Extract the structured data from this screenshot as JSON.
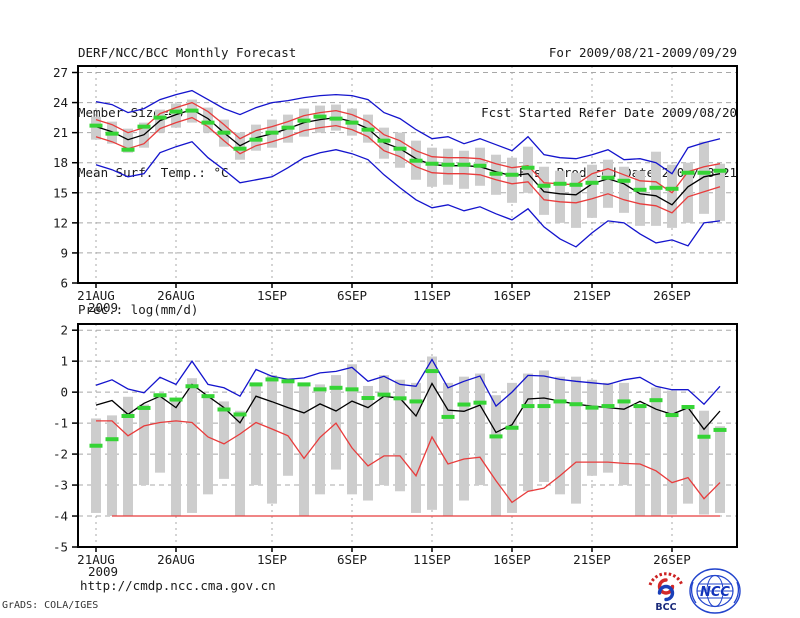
{
  "header": {
    "title": "DERF/NCC/BCC Monthly Forecast",
    "member_size": "Member Size=40",
    "for_range": "For 2009/08/21-2009/09/29",
    "refer_date": "Fcst Started Refer Date 2009/08/20",
    "produced_date": "Fcst Produced Date 2009/08/21"
  },
  "footer": {
    "url": "http://cmdp.ncc.cma.gov.cn",
    "grads_credit": "GrADS: COLA/IGES",
    "bcc_label": "BCC",
    "ncc_label": "NCC"
  },
  "colors": {
    "envelope_blue": "#1414cd",
    "spread_red": "#e83c3c",
    "mean_black": "#000000",
    "marker_green": "#35d435",
    "bar_gray": "#cdcdcd",
    "grid_gray": "#a8a8a8"
  },
  "chart_data": [
    {
      "type": "line",
      "name": "temperature-chart",
      "title": "Mean Surf. Temp.: °C",
      "ylabel": "",
      "ylim": [
        6,
        27
      ],
      "grid": true,
      "n_days": 40,
      "yticks": [
        27,
        24,
        21,
        18,
        15,
        12,
        9,
        6
      ],
      "xticks": [
        {
          "day": 1,
          "label": "21AUG",
          "sublabel": "2009"
        },
        {
          "day": 6,
          "label": "26AUG"
        },
        {
          "day": 12,
          "label": "1SEP"
        },
        {
          "day": 17,
          "label": "6SEP"
        },
        {
          "day": 22,
          "label": "11SEP"
        },
        {
          "day": 27,
          "label": "16SEP"
        },
        {
          "day": 32,
          "label": "21SEP"
        },
        {
          "day": 37,
          "label": "26SEP"
        }
      ],
      "series": [
        {
          "name": "ensemble-min-line",
          "color": "#1414cd",
          "values": [
            17.8,
            17.3,
            16.6,
            16.9,
            19.0,
            19.6,
            20.1,
            18.5,
            17.3,
            16.0,
            16.3,
            16.6,
            17.5,
            18.5,
            19.0,
            19.3,
            18.9,
            18.3,
            16.8,
            15.5,
            14.3,
            13.5,
            13.8,
            13.2,
            13.6,
            12.9,
            12.3,
            13.4,
            11.6,
            10.4,
            9.6,
            11.0,
            12.2,
            12.0,
            10.9,
            10.0,
            10.3,
            9.7,
            12.0,
            12.2
          ]
        },
        {
          "name": "ensemble-max-line",
          "color": "#1414cd",
          "values": [
            24.1,
            23.8,
            23.0,
            23.4,
            24.3,
            24.8,
            25.2,
            24.3,
            23.4,
            22.8,
            23.5,
            24.0,
            24.2,
            24.5,
            24.7,
            24.8,
            24.7,
            24.3,
            23.0,
            22.4,
            21.3,
            20.4,
            20.6,
            19.9,
            20.4,
            19.8,
            19.2,
            20.6,
            18.8,
            18.5,
            18.4,
            18.8,
            19.3,
            18.3,
            18.4,
            18.0,
            16.9,
            19.5,
            20.0,
            20.4
          ]
        },
        {
          "name": "lower-spread-line",
          "color": "#e83c3c",
          "values": [
            20.6,
            20.1,
            19.4,
            19.9,
            21.4,
            22.0,
            22.5,
            21.6,
            20.2,
            18.9,
            19.7,
            20.1,
            20.6,
            21.2,
            21.5,
            21.7,
            21.3,
            20.6,
            19.2,
            18.6,
            17.6,
            17.0,
            16.9,
            16.9,
            16.8,
            16.3,
            15.9,
            16.1,
            14.3,
            14.1,
            14.0,
            14.4,
            14.9,
            14.3,
            13.9,
            13.7,
            13.0,
            14.6,
            15.1,
            15.6
          ]
        },
        {
          "name": "upper-spread-line",
          "color": "#e83c3c",
          "values": [
            22.3,
            21.8,
            21.0,
            21.5,
            22.9,
            23.5,
            24.0,
            23.1,
            21.8,
            20.4,
            21.2,
            21.6,
            22.1,
            22.7,
            23.0,
            23.2,
            22.8,
            22.1,
            20.8,
            20.2,
            19.2,
            18.6,
            18.5,
            18.5,
            18.4,
            17.9,
            17.5,
            17.7,
            16.0,
            15.9,
            15.8,
            16.9,
            17.4,
            16.8,
            16.2,
            16.1,
            15.0,
            17.1,
            17.6,
            17.9
          ]
        },
        {
          "name": "ensemble-mean-line",
          "color": "#000000",
          "values": [
            21.6,
            21.1,
            20.3,
            20.8,
            22.2,
            22.8,
            23.3,
            22.4,
            21.0,
            19.7,
            20.5,
            20.9,
            21.4,
            22.0,
            22.3,
            22.5,
            22.1,
            21.4,
            20.0,
            19.4,
            18.4,
            17.8,
            17.7,
            17.7,
            17.6,
            17.1,
            16.7,
            16.9,
            15.1,
            14.9,
            14.8,
            15.9,
            16.4,
            15.9,
            14.9,
            14.7,
            13.8,
            15.6,
            16.6,
            16.9
          ]
        }
      ],
      "markers": {
        "name": "green-median-marks",
        "color": "#35d435",
        "values": [
          21.7,
          20.9,
          19.3,
          21.6,
          22.5,
          23.1,
          23.2,
          22.0,
          21.0,
          19.4,
          20.3,
          21.0,
          21.5,
          22.2,
          22.6,
          22.4,
          22.0,
          21.3,
          20.2,
          19.4,
          18.2,
          17.9,
          17.8,
          17.8,
          17.7,
          16.9,
          16.8,
          17.5,
          15.7,
          15.9,
          15.8,
          16.0,
          16.5,
          16.2,
          15.3,
          15.5,
          15.4,
          17.0,
          17.0,
          17.2
        ]
      },
      "bars": {
        "name": "ensemble-spread-bars",
        "color": "#cdcdcd",
        "ranges": [
          [
            20.3,
            22.6
          ],
          [
            19.9,
            22.1
          ],
          [
            19.0,
            21.4
          ],
          [
            19.5,
            22.0
          ],
          [
            21.0,
            23.3
          ],
          [
            21.5,
            23.9
          ],
          [
            22.0,
            24.3
          ],
          [
            21.0,
            23.5
          ],
          [
            19.6,
            22.3
          ],
          [
            18.3,
            21.0
          ],
          [
            19.2,
            21.8
          ],
          [
            19.5,
            22.3
          ],
          [
            20.0,
            22.8
          ],
          [
            20.6,
            23.4
          ],
          [
            21.0,
            23.7
          ],
          [
            21.2,
            23.8
          ],
          [
            20.7,
            23.4
          ],
          [
            20.0,
            22.8
          ],
          [
            18.4,
            21.5
          ],
          [
            17.5,
            21.0
          ],
          [
            16.3,
            20.2
          ],
          [
            15.6,
            19.5
          ],
          [
            15.8,
            19.4
          ],
          [
            15.4,
            19.2
          ],
          [
            15.7,
            19.5
          ],
          [
            14.8,
            18.8
          ],
          [
            14.0,
            18.5
          ],
          [
            15.0,
            19.6
          ],
          [
            12.8,
            17.6
          ],
          [
            12.0,
            17.2
          ],
          [
            11.5,
            17.0
          ],
          [
            12.5,
            17.8
          ],
          [
            13.5,
            18.3
          ],
          [
            13.0,
            17.6
          ],
          [
            11.7,
            17.2
          ],
          [
            11.7,
            19.1
          ],
          [
            11.5,
            17.8
          ],
          [
            12.0,
            18.0
          ],
          [
            12.9,
            20.1
          ],
          [
            12.2,
            17.9
          ]
        ]
      }
    },
    {
      "type": "line",
      "name": "precipitation-chart",
      "title": "Prec.: log(mm/d)",
      "ylabel": "",
      "ylim": [
        -5,
        2
      ],
      "grid": true,
      "n_days": 40,
      "yticks": [
        2,
        1,
        0,
        -1,
        -2,
        -3,
        -4,
        -5
      ],
      "xticks": [
        {
          "day": 1,
          "label": "21AUG",
          "sublabel": "2009"
        },
        {
          "day": 6,
          "label": "26AUG"
        },
        {
          "day": 12,
          "label": "1SEP"
        },
        {
          "day": 17,
          "label": "6SEP"
        },
        {
          "day": 22,
          "label": "11SEP"
        },
        {
          "day": 27,
          "label": "16SEP"
        },
        {
          "day": 32,
          "label": "21SEP"
        },
        {
          "day": 37,
          "label": "26SEP"
        }
      ],
      "floor_line": {
        "level": -4,
        "start_day": 2,
        "end_day": 40,
        "color": "#e83c3c"
      },
      "series": [
        {
          "name": "ensemble-max-line",
          "color": "#1414cd",
          "values": [
            0.22,
            0.4,
            0.1,
            -0.02,
            0.48,
            0.25,
            1.0,
            0.25,
            0.14,
            -0.13,
            0.73,
            0.51,
            0.41,
            0.46,
            0.62,
            0.67,
            0.8,
            0.35,
            0.51,
            0.25,
            0.19,
            1.05,
            0.14,
            0.35,
            0.52,
            -0.45,
            0.0,
            0.54,
            0.52,
            0.41,
            0.35,
            0.3,
            0.25,
            0.4,
            0.48,
            0.19,
            0.08,
            0.08,
            -0.39,
            0.19
          ]
        },
        {
          "name": "ensemble-min-line",
          "color": "#e83c3c",
          "values": [
            -0.93,
            -0.93,
            -1.41,
            -1.09,
            -0.98,
            -0.93,
            -0.98,
            -1.45,
            -1.67,
            -1.35,
            -0.98,
            -1.19,
            -1.41,
            -2.14,
            -1.46,
            -1.0,
            -1.8,
            -2.38,
            -2.06,
            -2.06,
            -2.7,
            -1.45,
            -2.32,
            -2.16,
            -2.1,
            -2.86,
            -3.56,
            -3.2,
            -3.1,
            -2.7,
            -2.26,
            -2.26,
            -2.26,
            -2.3,
            -2.32,
            -2.54,
            -2.92,
            -2.76,
            -3.44,
            -2.92
          ]
        },
        {
          "name": "ensemble-mean-line",
          "color": "#000000",
          "values": [
            -0.42,
            -0.27,
            -0.72,
            -0.36,
            -0.13,
            -0.5,
            0.25,
            -0.13,
            -0.5,
            -0.99,
            -0.13,
            -0.31,
            -0.5,
            -0.67,
            -0.38,
            -0.61,
            -0.29,
            -0.5,
            -0.13,
            -0.2,
            -0.77,
            0.28,
            -0.58,
            -0.62,
            -0.42,
            -1.3,
            -1.05,
            -0.22,
            -0.19,
            -0.29,
            -0.39,
            -0.45,
            -0.5,
            -0.55,
            -0.3,
            -0.55,
            -0.72,
            -0.5,
            -1.2,
            -0.61
          ]
        }
      ],
      "markers": {
        "name": "green-median-marks",
        "color": "#35d435",
        "values": [
          -1.73,
          -1.52,
          -0.77,
          -0.51,
          -0.1,
          -0.24,
          0.19,
          -0.13,
          -0.56,
          -0.72,
          0.25,
          0.41,
          0.35,
          0.25,
          0.09,
          0.14,
          0.09,
          -0.19,
          -0.08,
          -0.2,
          -0.3,
          0.68,
          -0.8,
          -0.4,
          -0.34,
          -1.43,
          -1.15,
          -0.45,
          -0.45,
          -0.3,
          -0.39,
          -0.5,
          -0.45,
          -0.3,
          -0.45,
          -0.26,
          -0.74,
          -0.48,
          -1.44,
          -1.22
        ]
      },
      "bars": {
        "name": "ensemble-spread-bars",
        "color": "#cdcdcd",
        "ranges": [
          [
            -3.9,
            -0.85
          ],
          [
            -4.0,
            -0.75
          ],
          [
            -4.0,
            -0.15
          ],
          [
            -3.0,
            -0.4
          ],
          [
            -2.6,
            -0.1
          ],
          [
            -4.0,
            -0.3
          ],
          [
            -3.9,
            0.45
          ],
          [
            -3.3,
            -0.1
          ],
          [
            -2.8,
            -0.3
          ],
          [
            -4.0,
            -0.6
          ],
          [
            -3.0,
            0.3
          ],
          [
            -3.6,
            0.55
          ],
          [
            -2.7,
            0.45
          ],
          [
            -4.0,
            0.3
          ],
          [
            -3.3,
            0.25
          ],
          [
            -2.5,
            0.55
          ],
          [
            -3.3,
            0.9
          ],
          [
            -3.5,
            0.2
          ],
          [
            -3.0,
            0.55
          ],
          [
            -3.2,
            0.4
          ],
          [
            -3.9,
            0.3
          ],
          [
            -3.8,
            1.15
          ],
          [
            -4.0,
            0.3
          ],
          [
            -3.5,
            0.5
          ],
          [
            -3.0,
            0.6
          ],
          [
            -4.0,
            -0.1
          ],
          [
            -3.9,
            0.3
          ],
          [
            -3.2,
            0.6
          ],
          [
            -2.9,
            0.7
          ],
          [
            -3.3,
            0.5
          ],
          [
            -3.6,
            0.5
          ],
          [
            -2.7,
            0.4
          ],
          [
            -2.6,
            0.3
          ],
          [
            -3.0,
            0.3
          ],
          [
            -4.0,
            -0.45
          ],
          [
            -4.0,
            0.15
          ],
          [
            -3.95,
            0.05
          ],
          [
            -3.6,
            -0.5
          ],
          [
            -3.95,
            -0.6
          ],
          [
            -3.9,
            -1.1
          ]
        ]
      }
    }
  ]
}
